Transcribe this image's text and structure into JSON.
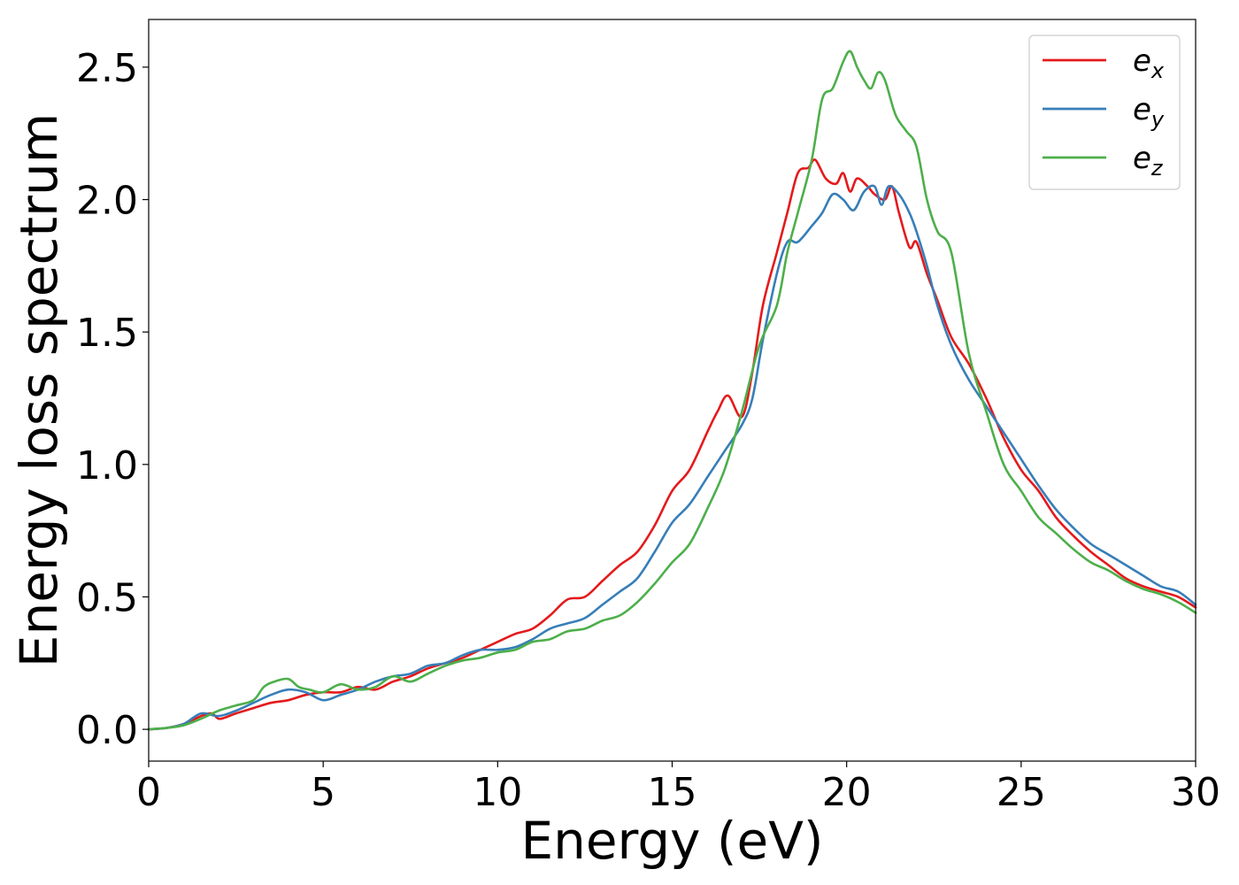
{
  "chart_data": {
    "type": "line",
    "title": "",
    "xlabel": "Energy (eV)",
    "ylabel": "Energy loss spectrum",
    "xlim": [
      0,
      30
    ],
    "ylim": [
      -0.12,
      2.68
    ],
    "xticks": [
      0,
      5,
      10,
      15,
      20,
      25,
      30
    ],
    "xtick_labels": [
      "0",
      "5",
      "10",
      "15",
      "20",
      "25",
      "30"
    ],
    "yticks": [
      0.0,
      0.5,
      1.0,
      1.5,
      2.0,
      2.5
    ],
    "ytick_labels": [
      "0.0",
      "0.5",
      "1.0",
      "1.5",
      "2.0",
      "2.5"
    ],
    "grid": false,
    "legend_position": "top-right",
    "series": [
      {
        "name": "e_x",
        "legend_base": "e",
        "legend_sub": "x",
        "color": "#e41a1c",
        "x": [
          0,
          0.5,
          1,
          1.5,
          1.8,
          2,
          2.2,
          2.5,
          3,
          3.5,
          4,
          4.5,
          5,
          5.5,
          6,
          6.5,
          7,
          7.5,
          8,
          8.5,
          9,
          9.5,
          10,
          10.5,
          11,
          11.5,
          12,
          12.5,
          13,
          13.5,
          14,
          14.5,
          15,
          15.5,
          16,
          16.3,
          16.6,
          17,
          17.3,
          17.6,
          18,
          18.3,
          18.6,
          18.9,
          19.1,
          19.4,
          19.7,
          19.9,
          20.1,
          20.3,
          20.6,
          20.8,
          21.1,
          21.3,
          21.5,
          21.8,
          22,
          22.3,
          22.6,
          23,
          23.5,
          24,
          24.5,
          25,
          25.5,
          26,
          26.5,
          27,
          27.5,
          28,
          28.5,
          29,
          29.5,
          30
        ],
        "y": [
          0.0,
          0.005,
          0.02,
          0.05,
          0.06,
          0.04,
          0.045,
          0.06,
          0.08,
          0.1,
          0.11,
          0.13,
          0.14,
          0.14,
          0.16,
          0.15,
          0.18,
          0.2,
          0.23,
          0.25,
          0.27,
          0.3,
          0.33,
          0.36,
          0.38,
          0.43,
          0.49,
          0.5,
          0.56,
          0.62,
          0.67,
          0.77,
          0.9,
          0.98,
          1.12,
          1.2,
          1.26,
          1.18,
          1.35,
          1.6,
          1.8,
          1.95,
          2.1,
          2.12,
          2.15,
          2.08,
          2.06,
          2.1,
          2.03,
          2.08,
          2.05,
          2.02,
          2.0,
          2.05,
          1.95,
          1.82,
          1.84,
          1.72,
          1.62,
          1.48,
          1.38,
          1.25,
          1.1,
          0.98,
          0.9,
          0.8,
          0.73,
          0.67,
          0.62,
          0.57,
          0.54,
          0.52,
          0.5,
          0.46
        ]
      },
      {
        "name": "e_y",
        "legend_base": "e",
        "legend_sub": "y",
        "color": "#377eb8",
        "x": [
          0,
          0.5,
          1,
          1.5,
          2,
          2.5,
          3,
          3.5,
          4,
          4.5,
          5,
          5.5,
          6,
          6.5,
          7,
          7.5,
          8,
          8.5,
          9,
          9.5,
          10,
          10.5,
          11,
          11.5,
          12,
          12.5,
          13,
          13.5,
          14,
          14.5,
          15,
          15.5,
          16,
          16.5,
          17,
          17.3,
          17.6,
          18,
          18.3,
          18.6,
          19,
          19.3,
          19.6,
          19.9,
          20.2,
          20.5,
          20.8,
          21,
          21.2,
          21.5,
          21.8,
          22,
          22.3,
          22.6,
          23,
          23.5,
          24,
          24.5,
          25,
          25.5,
          26,
          26.5,
          27,
          27.5,
          28,
          28.5,
          29,
          29.5,
          30
        ],
        "y": [
          0.0,
          0.005,
          0.02,
          0.06,
          0.05,
          0.07,
          0.1,
          0.13,
          0.15,
          0.14,
          0.11,
          0.13,
          0.15,
          0.18,
          0.2,
          0.21,
          0.24,
          0.25,
          0.28,
          0.3,
          0.3,
          0.31,
          0.34,
          0.38,
          0.4,
          0.42,
          0.47,
          0.52,
          0.57,
          0.67,
          0.78,
          0.85,
          0.95,
          1.05,
          1.15,
          1.25,
          1.47,
          1.72,
          1.84,
          1.84,
          1.9,
          1.95,
          2.02,
          2.0,
          1.96,
          2.03,
          2.05,
          1.98,
          2.05,
          2.02,
          1.95,
          1.88,
          1.75,
          1.6,
          1.45,
          1.32,
          1.22,
          1.12,
          1.02,
          0.92,
          0.83,
          0.76,
          0.7,
          0.66,
          0.62,
          0.58,
          0.54,
          0.52,
          0.47
        ]
      },
      {
        "name": "e_z",
        "legend_base": "e",
        "legend_sub": "z",
        "color": "#4daf4a",
        "x": [
          0,
          0.5,
          1,
          1.5,
          2,
          2.5,
          3,
          3.3,
          3.6,
          4,
          4.3,
          4.6,
          5,
          5.5,
          6,
          6.5,
          7,
          7.5,
          8,
          8.5,
          9,
          9.5,
          10,
          10.5,
          11,
          11.5,
          12,
          12.5,
          13,
          13.5,
          14,
          14.5,
          15,
          15.5,
          16,
          16.5,
          17,
          17.5,
          18,
          18.3,
          18.6,
          19,
          19.3,
          19.6,
          19.9,
          20.1,
          20.3,
          20.5,
          20.7,
          20.9,
          21.1,
          21.4,
          21.7,
          22,
          22.3,
          22.6,
          23,
          23.5,
          24,
          24.5,
          25,
          25.5,
          26,
          26.5,
          27,
          27.5,
          28,
          28.5,
          29,
          29.5,
          30
        ],
        "y": [
          0.0,
          0.005,
          0.015,
          0.04,
          0.07,
          0.09,
          0.11,
          0.16,
          0.18,
          0.19,
          0.16,
          0.15,
          0.14,
          0.17,
          0.15,
          0.16,
          0.2,
          0.18,
          0.21,
          0.24,
          0.26,
          0.27,
          0.29,
          0.3,
          0.33,
          0.34,
          0.37,
          0.38,
          0.41,
          0.43,
          0.48,
          0.55,
          0.63,
          0.7,
          0.83,
          0.98,
          1.2,
          1.45,
          1.6,
          1.8,
          1.95,
          2.15,
          2.38,
          2.42,
          2.52,
          2.56,
          2.5,
          2.45,
          2.42,
          2.48,
          2.45,
          2.32,
          2.26,
          2.2,
          2.0,
          1.88,
          1.8,
          1.42,
          1.2,
          1.0,
          0.9,
          0.8,
          0.74,
          0.68,
          0.63,
          0.6,
          0.56,
          0.53,
          0.51,
          0.48,
          0.44
        ]
      }
    ]
  }
}
